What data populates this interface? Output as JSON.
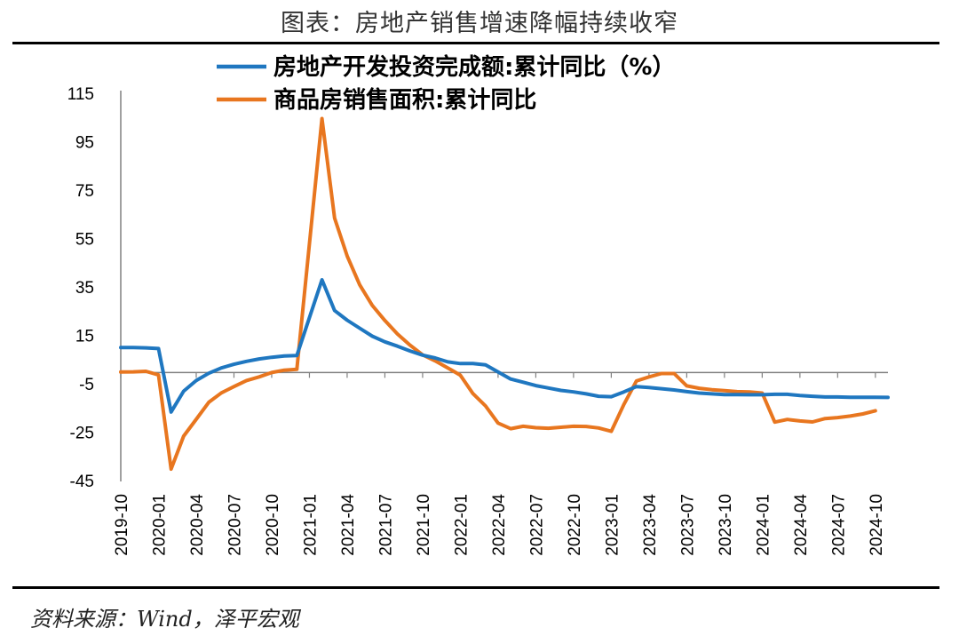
{
  "title": "图表：房地产销售增速降幅持续收窄",
  "source": "资料来源：Wind，泽平宏观",
  "chart_data": {
    "type": "line",
    "ylim": [
      -45,
      115
    ],
    "yticks": [
      115,
      95,
      75,
      55,
      35,
      15,
      -5,
      -25,
      -45
    ],
    "x_tick_labels": [
      "2019-10",
      "2020-01",
      "2020-04",
      "2020-07",
      "2020-10",
      "2021-01",
      "2021-04",
      "2021-07",
      "2021-10",
      "2022-01",
      "2022-04",
      "2022-07",
      "2022-10",
      "2023-01",
      "2023-04",
      "2023-07",
      "2023-10",
      "2024-01",
      "2024-04",
      "2024-07",
      "2024-10"
    ],
    "series": [
      {
        "name": "房地产开发投资完成额:累计同比（%）",
        "color": "#1f77c0",
        "points": [
          [
            0,
            10.3
          ],
          [
            1,
            10.3
          ],
          [
            2,
            10.2
          ],
          [
            3,
            9.9
          ],
          [
            4,
            -16.3
          ],
          [
            5,
            -7.7
          ],
          [
            6,
            -3.3
          ],
          [
            7,
            -0.3
          ],
          [
            8,
            1.9
          ],
          [
            9,
            3.4
          ],
          [
            10,
            4.6
          ],
          [
            11,
            5.6
          ],
          [
            12,
            6.3
          ],
          [
            13,
            6.8
          ],
          [
            14,
            7.0
          ],
          [
            16,
            38.3
          ],
          [
            17,
            25.6
          ],
          [
            18,
            21.6
          ],
          [
            19,
            18.3
          ],
          [
            20,
            15.0
          ],
          [
            21,
            12.7
          ],
          [
            22,
            10.9
          ],
          [
            23,
            8.9
          ],
          [
            24,
            7.2
          ],
          [
            25,
            6.0
          ],
          [
            26,
            4.4
          ],
          [
            27,
            3.7
          ],
          [
            28,
            3.7
          ],
          [
            29,
            3.2
          ],
          [
            31,
            -2.7
          ],
          [
            32,
            -4.0
          ],
          [
            33,
            -5.4
          ],
          [
            34,
            -6.4
          ],
          [
            35,
            -7.4
          ],
          [
            36,
            -8.0
          ],
          [
            37,
            -8.8
          ],
          [
            38,
            -9.8
          ],
          [
            39,
            -10.0
          ],
          [
            40,
            -8.0
          ],
          [
            41,
            -5.8
          ],
          [
            42,
            -6.2
          ],
          [
            43,
            -6.7
          ],
          [
            44,
            -7.2
          ],
          [
            45,
            -7.9
          ],
          [
            46,
            -8.5
          ],
          [
            47,
            -8.8
          ],
          [
            48,
            -9.1
          ],
          [
            49,
            -9.1
          ],
          [
            50,
            -9.2
          ],
          [
            51,
            -9.2
          ],
          [
            52,
            -9.0
          ],
          [
            53,
            -9.0
          ],
          [
            54,
            -9.5
          ],
          [
            55,
            -9.8
          ],
          [
            56,
            -10.1
          ],
          [
            57,
            -10.1
          ],
          [
            58,
            -10.2
          ],
          [
            59,
            -10.2
          ],
          [
            60,
            -10.2
          ],
          [
            61,
            -10.3
          ]
        ]
      },
      {
        "name": "商品房销售面积:累计同比",
        "color": "#e8761f",
        "points": [
          [
            0,
            0.2
          ],
          [
            1,
            0.3
          ],
          [
            2,
            0.5
          ],
          [
            3,
            -1.0
          ],
          [
            4,
            -39.9
          ],
          [
            5,
            -26.3
          ],
          [
            6,
            -19.3
          ],
          [
            7,
            -12.3
          ],
          [
            8,
            -8.4
          ],
          [
            9,
            -5.8
          ],
          [
            10,
            -3.3
          ],
          [
            11,
            -1.8
          ],
          [
            12,
            0.0
          ],
          [
            13,
            1.0
          ],
          [
            14,
            1.3
          ],
          [
            16,
            104.9
          ],
          [
            17,
            63.8
          ],
          [
            18,
            48.1
          ],
          [
            19,
            36.2
          ],
          [
            20,
            27.7
          ],
          [
            21,
            21.5
          ],
          [
            22,
            15.9
          ],
          [
            23,
            11.3
          ],
          [
            24,
            7.3
          ],
          [
            25,
            4.8
          ],
          [
            26,
            1.9
          ],
          [
            27,
            -1.1
          ],
          [
            28,
            -8.7
          ],
          [
            29,
            -13.8
          ],
          [
            30,
            -20.9
          ],
          [
            31,
            -23.2
          ],
          [
            32,
            -22.2
          ],
          [
            33,
            -22.8
          ],
          [
            34,
            -23.0
          ],
          [
            35,
            -22.6
          ],
          [
            36,
            -22.2
          ],
          [
            37,
            -22.3
          ],
          [
            38,
            -22.9
          ],
          [
            39,
            -24.3
          ],
          [
            40,
            -13.2
          ],
          [
            41,
            -3.5
          ],
          [
            42,
            -1.8
          ],
          [
            43,
            -0.4
          ],
          [
            44,
            -0.4
          ],
          [
            45,
            -5.5
          ],
          [
            46,
            -6.5
          ],
          [
            47,
            -7.1
          ],
          [
            48,
            -7.5
          ],
          [
            49,
            -7.9
          ],
          [
            50,
            -8.0
          ],
          [
            51,
            -8.5
          ],
          [
            52,
            -20.5
          ],
          [
            53,
            -19.4
          ],
          [
            54,
            -20.0
          ],
          [
            55,
            -20.4
          ],
          [
            56,
            -19.0
          ],
          [
            57,
            -18.6
          ],
          [
            58,
            -18.0
          ],
          [
            59,
            -17.1
          ],
          [
            60,
            -15.8
          ]
        ]
      }
    ]
  }
}
